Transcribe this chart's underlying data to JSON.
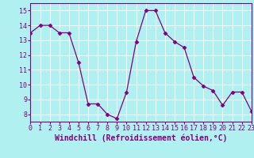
{
  "x": [
    0,
    1,
    2,
    3,
    4,
    5,
    6,
    7,
    8,
    9,
    10,
    11,
    12,
    13,
    14,
    15,
    16,
    17,
    18,
    19,
    20,
    21,
    22,
    23
  ],
  "y": [
    13.5,
    14.0,
    14.0,
    13.5,
    13.5,
    11.5,
    8.7,
    8.7,
    8.0,
    7.7,
    9.5,
    12.9,
    15.0,
    15.0,
    13.5,
    12.9,
    12.5,
    10.5,
    9.9,
    9.6,
    8.6,
    9.5,
    9.5,
    8.2
  ],
  "line_color": "#800080",
  "marker": "D",
  "marker_size": 2.5,
  "bg_color": "#b0f0f0",
  "grid_color": "#ffffff",
  "xlabel": "Windchill (Refroidissement éolien,°C)",
  "xlim": [
    0,
    23
  ],
  "ylim": [
    7.5,
    15.5
  ],
  "yticks": [
    8,
    9,
    10,
    11,
    12,
    13,
    14,
    15
  ],
  "xticks": [
    0,
    1,
    2,
    3,
    4,
    5,
    6,
    7,
    8,
    9,
    10,
    11,
    12,
    13,
    14,
    15,
    16,
    17,
    18,
    19,
    20,
    21,
    22,
    23
  ],
  "tick_fontsize": 6,
  "xlabel_fontsize": 7,
  "label_color": "#800080"
}
